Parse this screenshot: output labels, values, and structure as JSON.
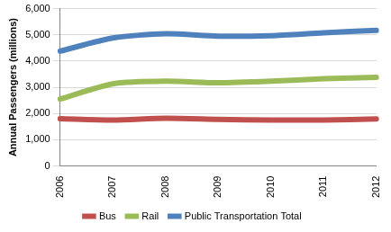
{
  "chart_data": {
    "type": "line",
    "y_label": "Annual Passengers (millions)",
    "categories": [
      "2006",
      "2007",
      "2008",
      "2009",
      "2010",
      "2011",
      "2012"
    ],
    "series": [
      {
        "name": "Bus",
        "color": "#c0504d",
        "values": [
          1800,
          1750,
          1820,
          1780,
          1750,
          1750,
          1790
        ]
      },
      {
        "name": "Rail",
        "color": "#9bbb59",
        "values": [
          2550,
          3130,
          3230,
          3170,
          3230,
          3330,
          3380
        ]
      },
      {
        "name": "Public Transportation Total",
        "color": "#4f81bd",
        "values": [
          4380,
          4880,
          5040,
          4950,
          4970,
          5080,
          5170
        ]
      }
    ],
    "ylim": [
      0,
      6000
    ],
    "yticks": [
      0,
      {
        "value": 1000,
        "label": "1,000"
      },
      {
        "value": 2000,
        "label": "2,000"
      },
      {
        "value": 3000,
        "label": "3,000"
      },
      {
        "value": 4000,
        "label": "4,000"
      },
      {
        "value": 5000,
        "label": "5,000"
      },
      {
        "value": 6000,
        "label": "6,000"
      }
    ],
    "grid": true,
    "legend": "bottom"
  }
}
